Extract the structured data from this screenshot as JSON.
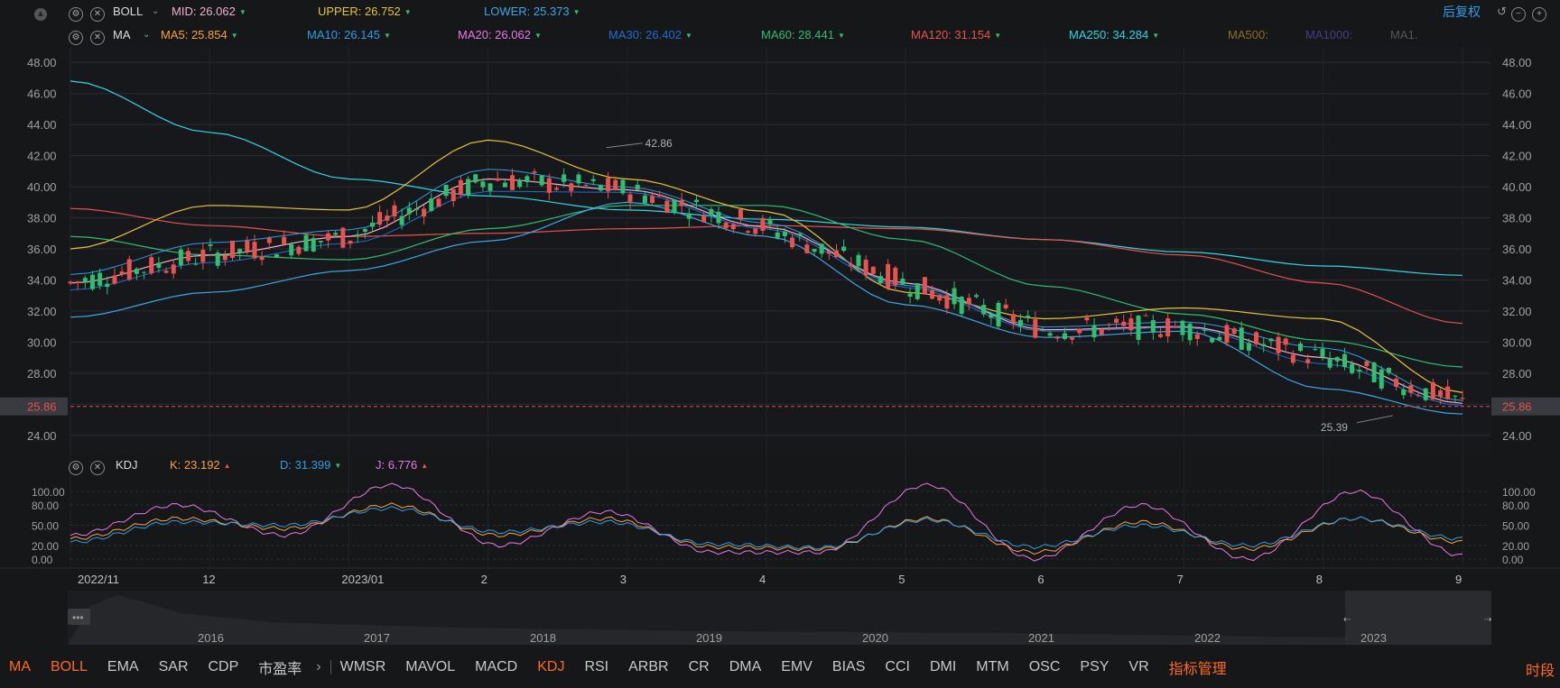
{
  "boll_row": {
    "name": "BOLL",
    "mid": "MID: 26.062",
    "upper": "UPPER: 26.752",
    "lower": "LOWER: 25.373",
    "right_label": "后复权"
  },
  "ma_row": {
    "name": "MA",
    "items": [
      "MA5: 25.854",
      "MA10: 26.145",
      "MA20: 26.062",
      "MA30: 26.402",
      "MA60: 28.441",
      "MA120: 31.154",
      "MA250: 34.284",
      "MA500:",
      "MA1000:",
      "MA1."
    ]
  },
  "kdj_row": {
    "name": "KDJ",
    "k": "K: 23.192",
    "d": "D: 31.399",
    "j": "J: 6.776"
  },
  "colors": {
    "ma5": "#f7a23e",
    "ma10": "#2d9ee8",
    "ma20": "#e878e8",
    "ma30": "#1d6fd6",
    "ma60": "#2fbf71",
    "ma120": "#e8524f",
    "ma250": "#30d5e6",
    "upper": "#e8c23a",
    "lower": "#3ba8e6",
    "mid": "#f1b0d0",
    "up": "#e8524f",
    "down": "#2fbf71",
    "k": "#f7a23e",
    "d": "#2d9ee8",
    "j": "#e878e8",
    "accent": "#ff6a21",
    "price_line": "#e8524f"
  },
  "price_axis": {
    "ticks": [
      "48.00",
      "46.00",
      "44.00",
      "42.00",
      "40.00",
      "38.00",
      "36.00",
      "34.00",
      "32.00",
      "30.00",
      "28.00",
      "26.00",
      "24.00"
    ],
    "current": "25.86",
    "high_label": "42.86",
    "low_label": "25.39"
  },
  "kdj_axis": {
    "ticks": [
      "100.00",
      "80.00",
      "50.00",
      "20.00",
      "0.00"
    ]
  },
  "time_axis": [
    "2022/11",
    "12",
    "2023/01",
    "2",
    "3",
    "4",
    "5",
    "6",
    "7",
    "8",
    "9"
  ],
  "overview_years": [
    "2016",
    "2017",
    "2018",
    "2019",
    "2020",
    "2021",
    "2022",
    "2023"
  ],
  "bottom_tabs": [
    "MA",
    "BOLL",
    "EMA",
    "SAR",
    "CDP",
    "市盈率",
    "WMSR",
    "MAVOL",
    "MACD",
    "KDJ",
    "RSI",
    "ARBR",
    "CR",
    "DMA",
    "EMV",
    "BIAS",
    "CCI",
    "DMI",
    "MTM",
    "OSC",
    "PSY",
    "VR",
    "指标管理"
  ],
  "bottom_right": "时段",
  "chart_data": {
    "type": "line",
    "title": "",
    "ylim": [
      23,
      49
    ],
    "x": [
      "2022/11",
      "12",
      "2023/01",
      "2",
      "3",
      "4",
      "5",
      "6",
      "7",
      "8",
      "9"
    ],
    "series": [
      {
        "name": "MA250",
        "values": [
          46.8,
          43.5,
          40.5,
          39.4,
          38.5,
          37.9,
          37.4,
          36.6,
          35.8,
          34.9,
          34.3
        ]
      },
      {
        "name": "MA120",
        "values": [
          38.6,
          37.5,
          36.8,
          37.0,
          37.3,
          37.5,
          37.3,
          36.6,
          35.6,
          33.8,
          31.2
        ]
      },
      {
        "name": "MA60",
        "values": [
          36.8,
          35.6,
          35.3,
          37.3,
          38.8,
          38.8,
          36.6,
          33.6,
          31.8,
          30.1,
          28.4
        ]
      },
      {
        "name": "UPPER",
        "values": [
          36.0,
          38.8,
          38.5,
          43.0,
          40.5,
          38.4,
          33.2,
          31.5,
          32.2,
          31.5,
          26.75
        ]
      },
      {
        "name": "MID",
        "values": [
          33.8,
          35.6,
          36.8,
          40.5,
          39.8,
          37.4,
          33.8,
          30.8,
          31.0,
          29.0,
          26.06
        ]
      },
      {
        "name": "LOWER",
        "values": [
          31.6,
          33.2,
          34.6,
          36.5,
          39.0,
          36.8,
          32.4,
          30.3,
          30.7,
          27.0,
          25.37
        ]
      }
    ],
    "last_close": 25.86,
    "high": 42.86,
    "low": 25.39,
    "kdj": {
      "ylim": [
        0,
        100
      ],
      "K": [
        30,
        60,
        45,
        80,
        35,
        60,
        18,
        15,
        60,
        10,
        55,
        15,
        60,
        25
      ],
      "D": [
        25,
        55,
        50,
        75,
        40,
        55,
        22,
        17,
        58,
        18,
        50,
        20,
        60,
        30
      ],
      "J": [
        35,
        80,
        35,
        110,
        20,
        70,
        10,
        10,
        110,
        0,
        80,
        0,
        100,
        5
      ]
    }
  }
}
